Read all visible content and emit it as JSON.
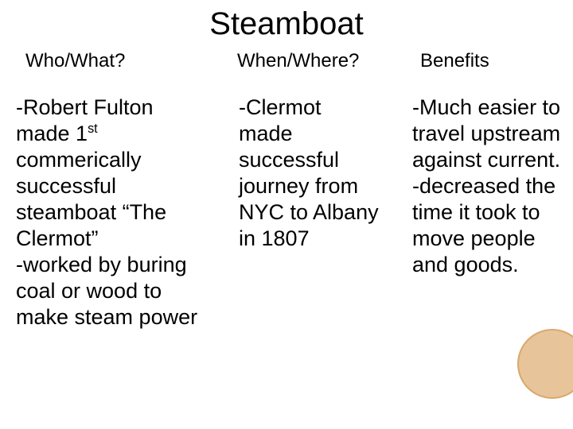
{
  "title": "Steamboat",
  "columns": {
    "who_what": {
      "header": "Who/What?",
      "body_html": "-Robert Fulton made 1<sup>st</sup> commerically successful steamboat “The Clermot”<br>-worked by buring coal or wood to make steam power"
    },
    "when_where": {
      "header": "When/Where?",
      "body_html": "-Clermot made successful journey from NYC to Albany in 1807"
    },
    "benefits": {
      "header": "Benefits",
      "body_html": "-Much easier to travel upstream against current.<br>-decreased the time it took to move people and goods."
    }
  },
  "accent_circle": {
    "fill": "#e8c49b",
    "stroke": "#d9a86a"
  }
}
